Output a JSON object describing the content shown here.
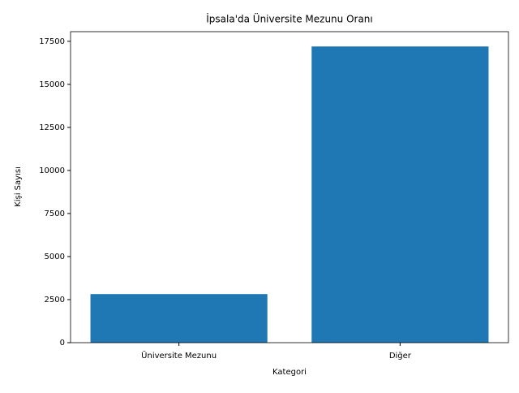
{
  "chart_data": {
    "type": "bar",
    "title": "İpsala'da Üniversite Mezunu Oranı",
    "x_label": "Kategori",
    "y_label": "Kişi Sayısı",
    "categories": [
      "Üniversite Mezunu",
      "Diğer"
    ],
    "values": [
      2820,
      17200
    ],
    "color": "#1f77b4",
    "ylim": [
      0,
      18060
    ],
    "yticks": [
      0,
      2500,
      5000,
      7500,
      10000,
      12500,
      15000,
      17500
    ],
    "grid": false
  }
}
